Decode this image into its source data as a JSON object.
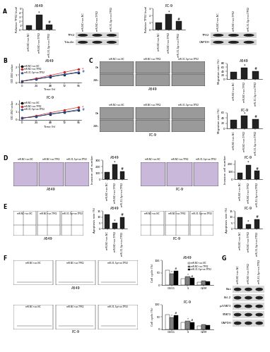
{
  "panel_labels": [
    "A",
    "B",
    "C",
    "D",
    "E",
    "F",
    "G"
  ],
  "chart_data": [
    {
      "type": "bar",
      "title": "A549",
      "y_label": "Relative TPX2 level",
      "categories": [
        "miR-NC+oe-NC",
        "miR-NC+oe-TPX2",
        "miR-31-5p+oe-TPX2"
      ],
      "values": [
        1.0,
        3.6,
        1.3
      ],
      "color": "#222222",
      "ylim": [
        0,
        5
      ],
      "yticks": [
        0,
        1,
        2,
        3,
        4,
        5
      ],
      "significance": [
        null,
        "*",
        "#"
      ]
    },
    {
      "type": "bar",
      "title": "PC-9",
      "y_label": "Relative TPX2 level",
      "categories": [
        "miR-NC+oe-NC",
        "miR-NC+oe-TPX2",
        "miR-31-5p+oe-TPX2"
      ],
      "values": [
        1.0,
        2.2,
        1.2
      ],
      "color": "#222222",
      "ylim": [
        0,
        3
      ],
      "yticks": [
        0,
        1,
        2,
        3
      ],
      "significance": [
        null,
        "*",
        "#"
      ]
    },
    {
      "type": "line",
      "title": "A549",
      "x_label": "Time (h)",
      "y_label": "OD 450 value",
      "x": [
        0,
        24,
        48,
        72,
        96
      ],
      "xlim": [
        -5,
        100
      ],
      "xticks": [
        0,
        24,
        48,
        72,
        96
      ],
      "ylim": [
        0,
        2.5
      ],
      "yticks": [
        0,
        1,
        2
      ],
      "legend": "upper left",
      "series": [
        {
          "name": "miR-NC+oe-NC",
          "color": "#000000",
          "marker": "square",
          "values": [
            0.2,
            0.45,
            0.75,
            1.05,
            1.3
          ]
        },
        {
          "name": "miR-NC+oe-TPX2",
          "color": "#d62728",
          "marker": "circle",
          "values": [
            0.2,
            0.55,
            0.95,
            1.35,
            1.75
          ],
          "significance": "*"
        },
        {
          "name": "miR-31-5p+oe-TPX2",
          "color": "#1f4e9c",
          "marker": "triangle",
          "values": [
            0.2,
            0.48,
            0.8,
            1.1,
            1.4
          ],
          "significance": "#"
        }
      ]
    },
    {
      "type": "line",
      "title": "PC-9",
      "x_label": "Time (h)",
      "y_label": "OD 450 value",
      "x": [
        0,
        24,
        48,
        72,
        96
      ],
      "xlim": [
        -5,
        100
      ],
      "xticks": [
        0,
        24,
        48,
        72,
        96
      ],
      "ylim": [
        0,
        2.5
      ],
      "yticks": [
        0,
        1,
        2
      ],
      "legend": "upper left",
      "series": [
        {
          "name": "miR-NC+oe-NC",
          "color": "#000000",
          "marker": "square",
          "values": [
            0.2,
            0.4,
            0.7,
            0.95,
            1.2
          ]
        },
        {
          "name": "miR-NC+oe-TPX2",
          "color": "#d62728",
          "marker": "circle",
          "values": [
            0.2,
            0.5,
            0.9,
            1.25,
            1.6
          ],
          "significance": "*"
        },
        {
          "name": "miR-31-5p+oe-TPX2",
          "color": "#1f4e9c",
          "marker": "triangle",
          "values": [
            0.2,
            0.42,
            0.75,
            1.0,
            1.3
          ],
          "significance": "#"
        }
      ]
    },
    {
      "type": "bar",
      "title": "A549",
      "y_label": "Migration rate (%)",
      "categories": [
        "miR-NC+oe-NC",
        "miR-NC+oe-TPX2",
        "miR-31-5p+oe-TPX2"
      ],
      "values": [
        35,
        58,
        40
      ],
      "color": "#222222",
      "ylim": [
        0,
        80
      ],
      "yticks": [
        0,
        20,
        40,
        60,
        80
      ],
      "significance": [
        null,
        "*",
        "#"
      ]
    },
    {
      "type": "bar",
      "title": "PC-9",
      "y_label": "Migration rate (%)",
      "categories": [
        "miR-NC+oe-NC",
        "miR-NC+oe-TPX2",
        "miR-31-5p+oe-TPX2"
      ],
      "values": [
        32,
        48,
        35
      ],
      "color": "#222222",
      "ylim": [
        0,
        60
      ],
      "yticks": [
        0,
        20,
        40,
        60
      ],
      "significance": [
        null,
        "*",
        "#"
      ]
    },
    {
      "type": "bar",
      "title": "A549",
      "y_label": "Invasion cell number",
      "categories": [
        "miR-NC+oe-NC",
        "miR-NC+oe-TPX2",
        "miR-31-5p+oe-TPX2"
      ],
      "values": [
        110,
        230,
        130
      ],
      "color": "#222222",
      "ylim": [
        0,
        300
      ],
      "yticks": [
        0,
        100,
        200,
        300
      ],
      "significance": [
        null,
        "*",
        "#"
      ]
    },
    {
      "type": "bar",
      "title": "PC-9",
      "y_label": "Invasion cell number",
      "categories": [
        "miR-NC+oe-NC",
        "miR-NC+oe-TPX2",
        "miR-31-5p+oe-TPX2"
      ],
      "values": [
        90,
        190,
        110
      ],
      "color": "#222222",
      "ylim": [
        0,
        250
      ],
      "yticks": [
        0,
        100,
        200
      ],
      "significance": [
        null,
        "*",
        "#"
      ]
    },
    {
      "type": "bar",
      "title": "A549",
      "y_label": "Apoptosis rate (%)",
      "categories": [
        "miR-NC+oe-NC",
        "miR-NC+oe-TPX2",
        "miR-31-5p+oe-TPX2"
      ],
      "values": [
        12,
        5,
        10
      ],
      "color": "#222222",
      "ylim": [
        0,
        15
      ],
      "yticks": [
        0,
        5,
        10,
        15
      ],
      "significance": [
        null,
        "*",
        "#"
      ]
    },
    {
      "type": "bar",
      "title": "PC-9",
      "y_label": "Apoptosis rate (%)",
      "categories": [
        "miR-NC+oe-NC",
        "miR-NC+oe-TPX2",
        "miR-31-5p+oe-TPX2"
      ],
      "values": [
        10,
        4,
        8
      ],
      "color": "#222222",
      "ylim": [
        0,
        15
      ],
      "yticks": [
        0,
        5,
        10,
        15
      ],
      "significance": [
        null,
        "*",
        "#"
      ]
    },
    {
      "type": "bar",
      "title": "A549",
      "y_label": "Cell cycle (%)",
      "categories": [
        "G0/G1",
        "S",
        "G2/M"
      ],
      "ylim": [
        0,
        100
      ],
      "yticks": [
        0,
        50,
        100
      ],
      "legend": "upper right",
      "series": [
        {
          "name": "miR-NC+oe-NC",
          "color": "#ffffff",
          "values": [
            62,
            25,
            13
          ]
        },
        {
          "name": "miR-NC+oe-TPX2",
          "color": "#808080",
          "values": [
            45,
            36,
            19
          ],
          "significance": [
            "*",
            "*",
            null
          ]
        },
        {
          "name": "miR-31-5p+oe-TPX2",
          "color": "#000000",
          "values": [
            58,
            28,
            14
          ],
          "significance": [
            "#",
            "#",
            null
          ]
        }
      ]
    },
    {
      "type": "bar",
      "title": "PC-9",
      "y_label": "Cell cycle (%)",
      "categories": [
        "G0/G1",
        "S",
        "G2/M"
      ],
      "ylim": [
        0,
        100
      ],
      "yticks": [
        0,
        50,
        100
      ],
      "series": [
        {
          "name": "miR-NC+oe-NC",
          "color": "#ffffff",
          "values": [
            60,
            26,
            14
          ]
        },
        {
          "name": "miR-NC+oe-TPX2",
          "color": "#808080",
          "values": [
            47,
            34,
            19
          ],
          "significance": [
            "*",
            "*",
            null
          ]
        },
        {
          "name": "miR-31-5p+oe-TPX2",
          "color": "#000000",
          "values": [
            57,
            28,
            15
          ],
          "significance": [
            "#",
            "#",
            null
          ]
        }
      ]
    }
  ],
  "blots": [
    {
      "lanes": [
        "miR-NC+oe-NC",
        "miR-NC+oe-TPX2",
        "miR-31-5p+oe-TPX2"
      ],
      "bands": [
        "TPX2",
        "Tubulin"
      ]
    },
    {
      "lanes": [
        "miR-NC+oe-NC",
        "miR-NC+oe-TPX2",
        "miR-31-5p+oe-TPX2"
      ],
      "bands": [
        "TPX2",
        "GAPDH"
      ]
    },
    {
      "lanes": [
        "miR-NC+oe-NC",
        "miR-NC+oe-TPX2",
        "miR-31-5p+oe-TPX2"
      ],
      "bands": [
        "Bax",
        "Bcl-2",
        "p-STAT3",
        "STAT3",
        "GAPDH"
      ]
    }
  ],
  "images": [
    {
      "title": "A549",
      "columns": [
        "miR-NC+oe-NC",
        "miR-NC+oe-TPX2",
        "miR-31-5p+oe-TPX2"
      ],
      "rows": [
        "0h",
        "24h"
      ]
    },
    {
      "title": "PC-9",
      "columns": [
        "miR-NC+oe-NC",
        "miR-NC+oe-TPX2",
        "miR-31-5p+oe-TPX2"
      ],
      "rows": [
        "0h",
        "24h"
      ]
    },
    {
      "title": "A549",
      "columns": [
        "miR-NC+oe-NC",
        "miR-NC+oe-TPX2",
        "miR-31-5p+oe-TPX2"
      ]
    },
    {
      "title": "PC-9",
      "columns": [
        "miR-NC+oe-NC",
        "miR-NC+oe-TPX2",
        "miR-31-5p+oe-TPX2"
      ]
    },
    {
      "title": "A549",
      "columns": [
        "miR-NC+oe-NC",
        "miR-NC+oe-TPX2",
        "miR-31-5p+oe-TPX2"
      ]
    },
    {
      "title": "PC-9",
      "columns": [
        "miR-NC+oe-NC",
        "miR-NC+oe-TPX2",
        "miR-31-5p+oe-TPX2"
      ]
    },
    {
      "title": "A549",
      "columns": [
        "miR-NC+oe-NC",
        "miR-NC+oe-TPX2",
        "miR-31-5p+oe-TPX2"
      ]
    },
    {
      "title": "PC-9",
      "columns": [
        "miR-NC+oe-NC",
        "miR-NC+oe-TPX2",
        "miR-31-5p+oe-TPX2"
      ]
    }
  ]
}
